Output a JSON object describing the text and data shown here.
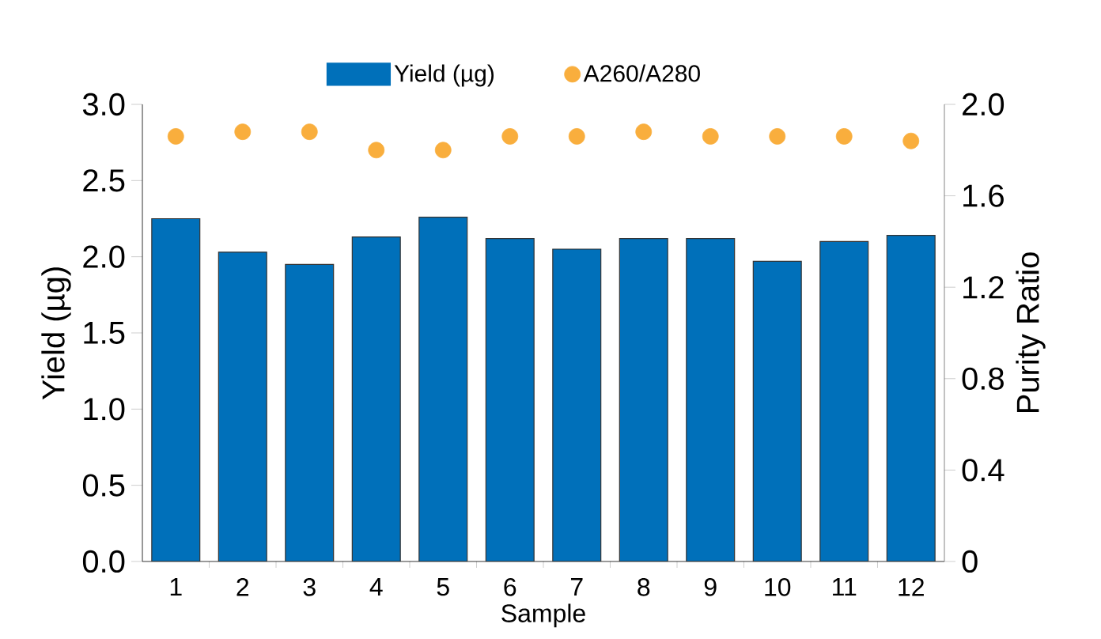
{
  "chart_data": {
    "type": "bar",
    "xlabel": "Sample",
    "ylabel": "Yield (µg)",
    "y2label": "Purity Ratio",
    "legend": "top",
    "categories": [
      "1",
      "2",
      "3",
      "4",
      "5",
      "6",
      "7",
      "8",
      "9",
      "10",
      "11",
      "12"
    ],
    "series": [
      {
        "name": "Yield (µg)",
        "color": "#0070ba",
        "values": [
          2.25,
          2.03,
          1.95,
          2.13,
          2.26,
          2.12,
          2.05,
          2.12,
          2.12,
          1.97,
          2.1,
          2.14
        ]
      },
      {
        "name": "A260/A280",
        "type": "scatter",
        "axis": "y2",
        "color": "#f9ae3d",
        "values": [
          1.86,
          1.88,
          1.88,
          1.8,
          1.8,
          1.86,
          1.86,
          1.88,
          1.86,
          1.86,
          1.86,
          1.84
        ]
      }
    ],
    "ylim": [
      0,
      3
    ],
    "yticks": [
      {
        "value": 0,
        "label": "0.0"
      },
      0.5,
      {
        "value": 1,
        "label": "1.0"
      },
      1.5,
      {
        "value": 2,
        "label": "2.0"
      },
      2.5,
      {
        "value": 3,
        "label": "3.0"
      }
    ],
    "y2lim": [
      0,
      2
    ],
    "y2ticks": [
      0,
      0.4,
      0.8,
      1.2,
      1.6,
      {
        "value": 2,
        "label": "2.0"
      }
    ]
  }
}
